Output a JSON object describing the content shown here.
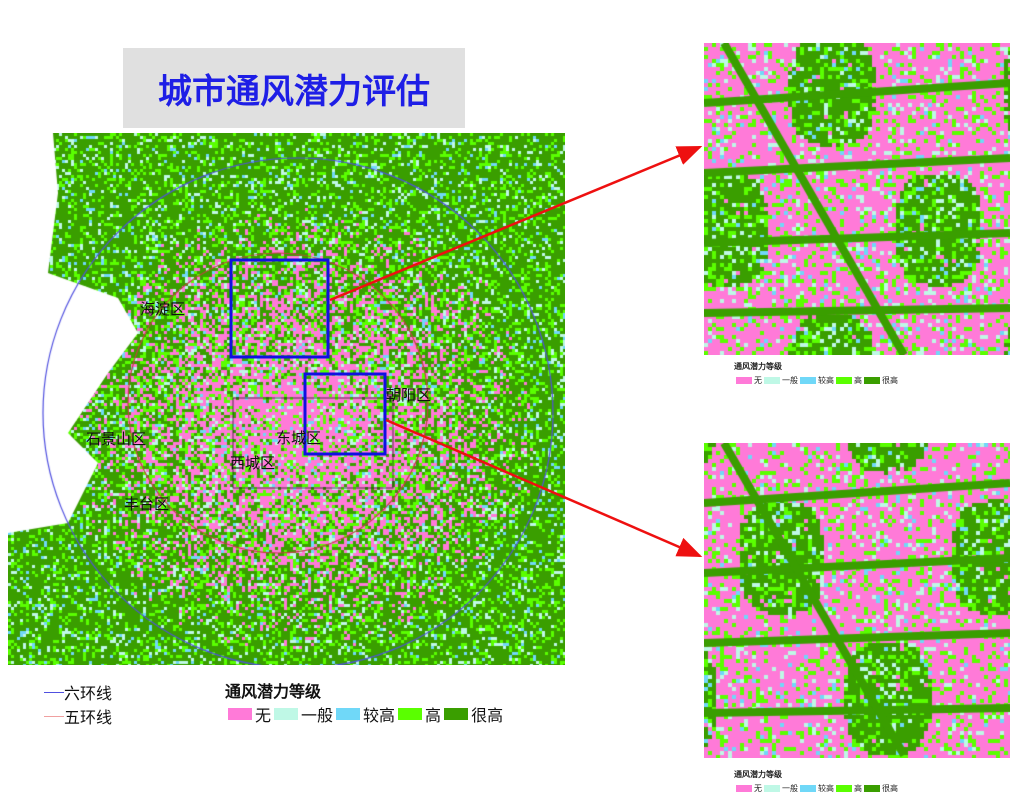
{
  "title": "城市通风潜力评估",
  "districts": [
    "海淀区",
    "石景山区",
    "西城区",
    "东城区",
    "朝阳区",
    "丰台区"
  ],
  "ring_legend": [
    {
      "label": "六环线",
      "color": "#5050e0"
    },
    {
      "label": "五环线",
      "color": "#f0a0a0"
    }
  ],
  "legend": {
    "title": "通风潜力等级",
    "classes": [
      {
        "label": "无",
        "color": "#ff7ad8"
      },
      {
        "label": "一般",
        "color": "#bff8e6"
      },
      {
        "label": "较高",
        "color": "#70d8f8"
      },
      {
        "label": "高",
        "color": "#5aff00"
      },
      {
        "label": "很高",
        "color": "#3a9e00"
      }
    ]
  },
  "zoom_box_color": "#1010e0",
  "arrow_color": "#ee1010"
}
